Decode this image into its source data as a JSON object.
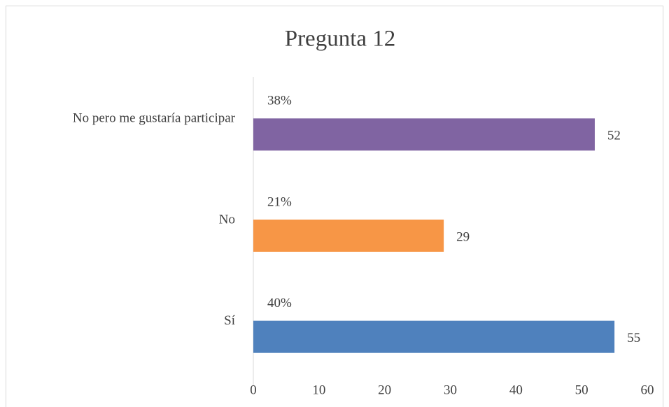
{
  "chart_data": {
    "type": "bar",
    "orientation": "horizontal",
    "title": "Pregunta 12",
    "categories": [
      "Sí",
      "No",
      "No pero me gustaría participar"
    ],
    "values": [
      55,
      29,
      52
    ],
    "colors": [
      "#4f81bd",
      "#f79646",
      "#8064a2"
    ],
    "annotations": [
      "40%",
      "21%",
      "38%"
    ],
    "xlim": [
      0,
      60
    ],
    "xticks": [
      0,
      10,
      20,
      30,
      40,
      50,
      60
    ],
    "grid": false
  }
}
